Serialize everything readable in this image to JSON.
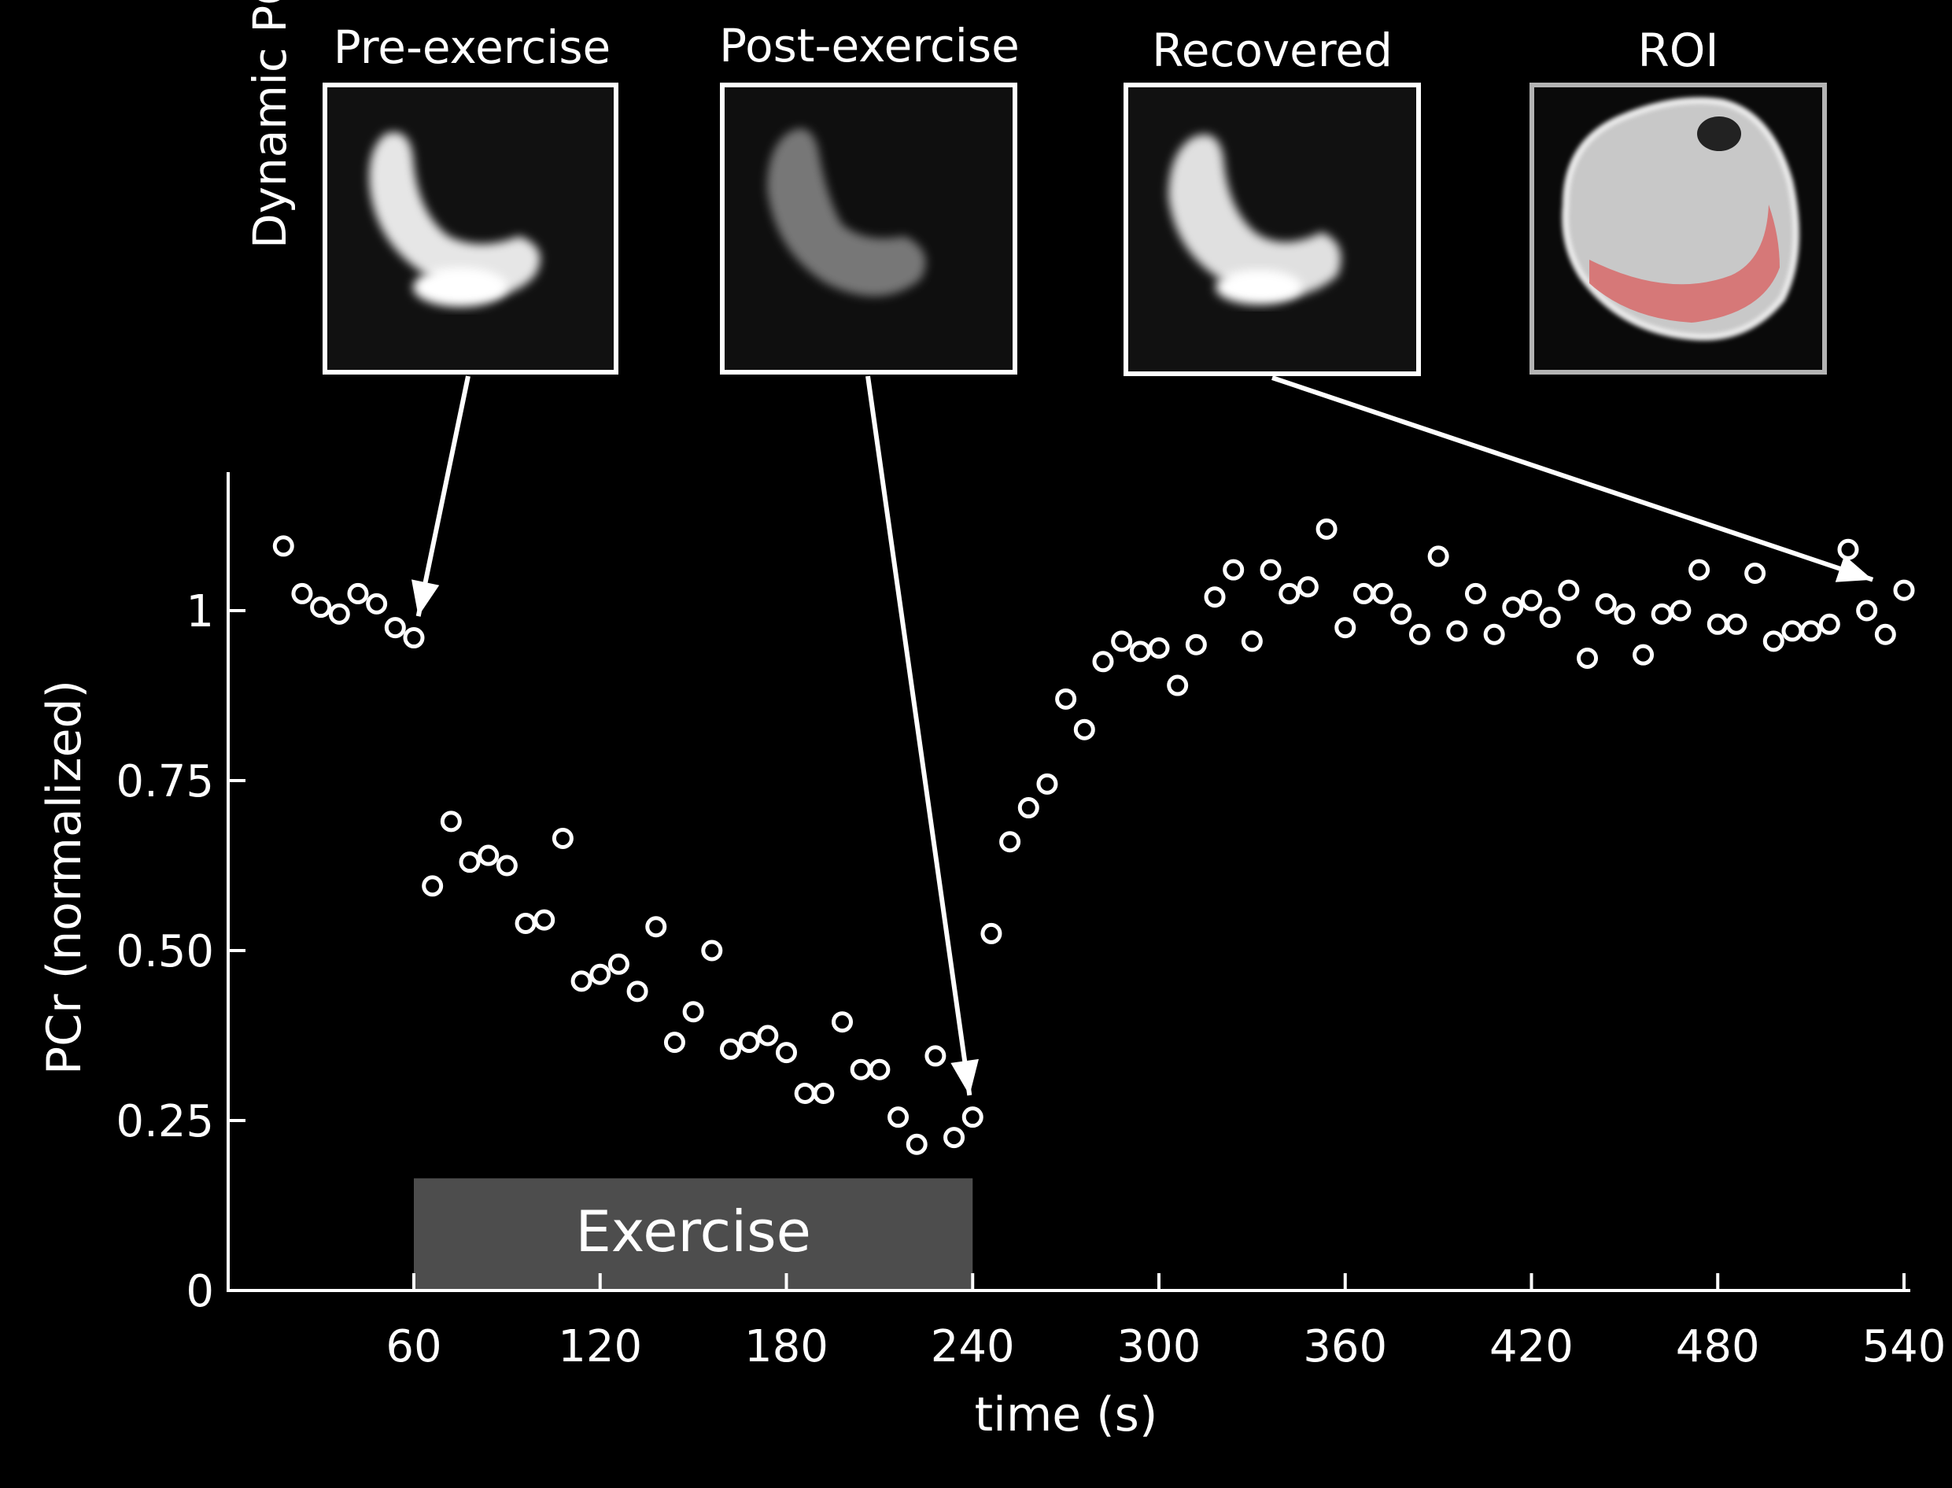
{
  "chart_data": {
    "type": "scatter",
    "title": "",
    "xlabel": "time (s)",
    "ylabel": "PCr (normalized)",
    "xlim": [
      0,
      546
    ],
    "ylim": [
      0,
      1.2
    ],
    "xticks": [
      60,
      120,
      180,
      240,
      300,
      360,
      420,
      480,
      540
    ],
    "yticks": [
      {
        "value": 0,
        "label": "0"
      },
      {
        "value": 0.25,
        "label": "0.25"
      },
      {
        "value": 0.5,
        "label": "0.50"
      },
      {
        "value": 0.75,
        "label": "0.75"
      },
      {
        "value": 1,
        "label": "1"
      }
    ],
    "exercise_period": {
      "label": "Exercise",
      "start": 60,
      "end": 240,
      "top": 0.165
    },
    "series": [
      {
        "name": "PCr",
        "points": [
          [
            18,
            1.095
          ],
          [
            24,
            1.025
          ],
          [
            30,
            1.005
          ],
          [
            36,
            0.995
          ],
          [
            42,
            1.025
          ],
          [
            48,
            1.01
          ],
          [
            54,
            0.975
          ],
          [
            60,
            0.96
          ],
          [
            66,
            0.595
          ],
          [
            72,
            0.69
          ],
          [
            78,
            0.63
          ],
          [
            84,
            0.64
          ],
          [
            90,
            0.625
          ],
          [
            96,
            0.54
          ],
          [
            102,
            0.545
          ],
          [
            108,
            0.665
          ],
          [
            114,
            0.455
          ],
          [
            120,
            0.465
          ],
          [
            126,
            0.48
          ],
          [
            132,
            0.44
          ],
          [
            138,
            0.535
          ],
          [
            144,
            0.365
          ],
          [
            150,
            0.41
          ],
          [
            156,
            0.5
          ],
          [
            162,
            0.355
          ],
          [
            168,
            0.365
          ],
          [
            174,
            0.375
          ],
          [
            180,
            0.35
          ],
          [
            186,
            0.29
          ],
          [
            192,
            0.29
          ],
          [
            198,
            0.395
          ],
          [
            204,
            0.325
          ],
          [
            210,
            0.325
          ],
          [
            216,
            0.255
          ],
          [
            222,
            0.215
          ],
          [
            228,
            0.345
          ],
          [
            234,
            0.225
          ],
          [
            240,
            0.255
          ],
          [
            246,
            0.525
          ],
          [
            252,
            0.66
          ],
          [
            258,
            0.71
          ],
          [
            264,
            0.745
          ],
          [
            270,
            0.87
          ],
          [
            276,
            0.825
          ],
          [
            282,
            0.925
          ],
          [
            288,
            0.955
          ],
          [
            294,
            0.94
          ],
          [
            300,
            0.945
          ],
          [
            306,
            0.89
          ],
          [
            312,
            0.95
          ],
          [
            318,
            1.02
          ],
          [
            324,
            1.06
          ],
          [
            330,
            0.955
          ],
          [
            336,
            1.06
          ],
          [
            342,
            1.025
          ],
          [
            348,
            1.035
          ],
          [
            354,
            1.12
          ],
          [
            360,
            0.975
          ],
          [
            366,
            1.025
          ],
          [
            372,
            1.025
          ],
          [
            378,
            0.995
          ],
          [
            384,
            0.965
          ],
          [
            390,
            1.08
          ],
          [
            396,
            0.97
          ],
          [
            402,
            1.025
          ],
          [
            408,
            0.965
          ],
          [
            414,
            1.005
          ],
          [
            420,
            1.015
          ],
          [
            426,
            0.99
          ],
          [
            432,
            1.03
          ],
          [
            438,
            0.93
          ],
          [
            444,
            1.01
          ],
          [
            450,
            0.995
          ],
          [
            456,
            0.935
          ],
          [
            462,
            0.995
          ],
          [
            468,
            1.0
          ],
          [
            474,
            1.06
          ],
          [
            480,
            0.98
          ],
          [
            486,
            0.98
          ],
          [
            492,
            1.055
          ],
          [
            498,
            0.955
          ],
          [
            504,
            0.97
          ],
          [
            510,
            0.97
          ],
          [
            516,
            0.98
          ],
          [
            522,
            1.09
          ],
          [
            528,
            1.0
          ],
          [
            534,
            0.965
          ],
          [
            540,
            1.03
          ]
        ]
      }
    ],
    "insets": [
      {
        "label": "Pre-exercise",
        "kind": "pre",
        "points_to": [
          60,
          0.96
        ]
      },
      {
        "label": "Post-exercise",
        "kind": "post",
        "points_to": [
          240,
          0.255
        ]
      },
      {
        "label": "Recovered",
        "kind": "recovered",
        "points_to": [
          540,
          1.03
        ]
      },
      {
        "label": "ROI",
        "kind": "roi"
      }
    ],
    "insets_row_label": "Dynamic PCr"
  },
  "colors": {
    "background": "#000000",
    "foreground": "#ffffff",
    "exercise_bar": "#4d4d4d",
    "roi_frame": "#b4b4b4",
    "roi_label": "#9a9a9a",
    "roi_mask": "#d86a6a"
  }
}
